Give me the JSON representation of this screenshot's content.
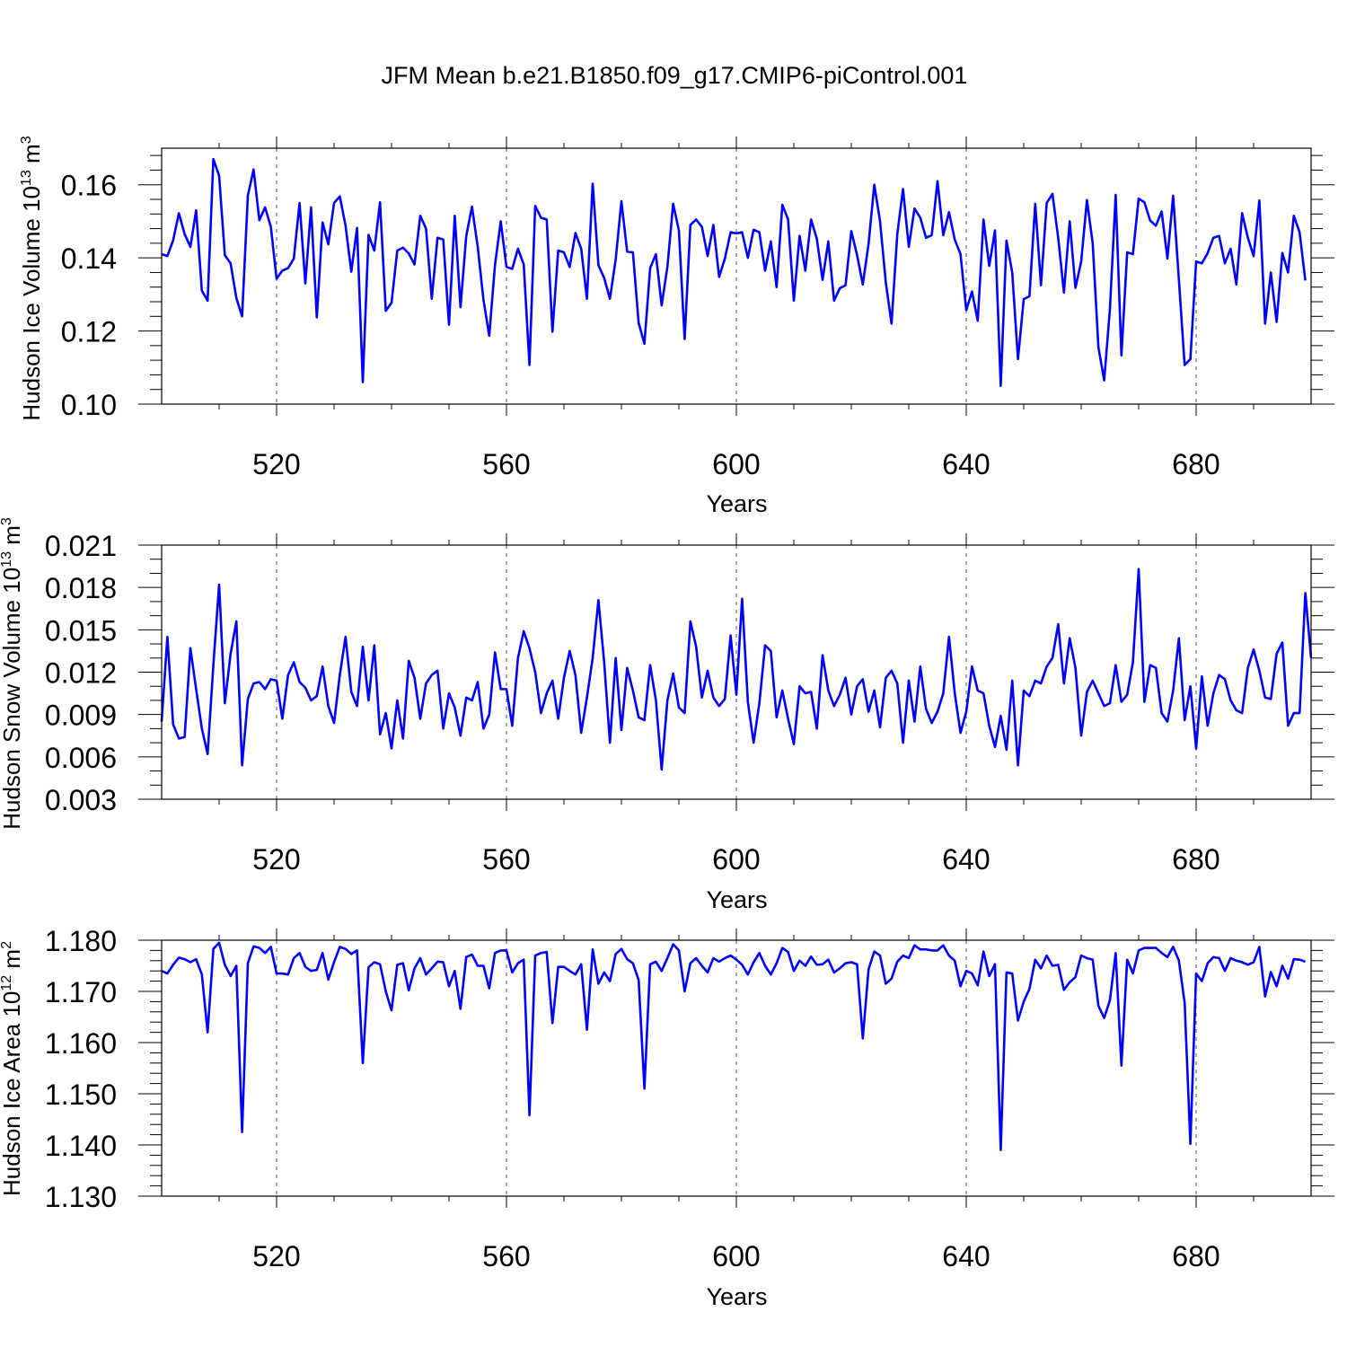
{
  "title": "JFM Mean b.e21.B1850.f09_g17.CMIP6-piControl.001",
  "colors": {
    "series": "#0000ff",
    "axes": "#000000",
    "grid": "#555555"
  },
  "chart_data": [
    {
      "type": "line",
      "ylabel_main": "Hudson Ice Volume 10",
      "ylabel_exp": "13",
      "ylabel_unit": "m",
      "ylabel_unit_exp": "3",
      "xlabel": "Years",
      "xlim": [
        500,
        700
      ],
      "ylim": [
        0.1,
        0.17
      ],
      "xticks": [
        520,
        560,
        600,
        640,
        680
      ],
      "xtick_labels": [
        "520",
        "560",
        "600",
        "640",
        "680"
      ],
      "yticks": [
        0.1,
        0.12,
        0.14,
        0.16
      ],
      "ytick_labels": [
        "0.10",
        "0.12",
        "0.14",
        "0.16"
      ],
      "y_minor_step": 0.004,
      "grid": "vertical dashed at major x ticks",
      "x_start": 500,
      "values": [
        0.141,
        0.1405,
        0.1448,
        0.1522,
        0.1465,
        0.143,
        0.153,
        0.131,
        0.1283,
        0.167,
        0.1625,
        0.1407,
        0.1385,
        0.129,
        0.124,
        0.157,
        0.1642,
        0.1503,
        0.1538,
        0.1485,
        0.1343,
        0.1365,
        0.1372,
        0.1398,
        0.155,
        0.133,
        0.1538,
        0.1237,
        0.1497,
        0.1437,
        0.155,
        0.1568,
        0.1488,
        0.1362,
        0.1482,
        0.106,
        0.1463,
        0.142,
        0.1552,
        0.1255,
        0.1277,
        0.142,
        0.1428,
        0.1412,
        0.1382,
        0.1515,
        0.148,
        0.1288,
        0.1455,
        0.145,
        0.1217,
        0.1515,
        0.1265,
        0.146,
        0.154,
        0.143,
        0.1285,
        0.1187,
        0.138,
        0.15,
        0.1375,
        0.137,
        0.1425,
        0.1382,
        0.1107,
        0.1542,
        0.151,
        0.1505,
        0.1198,
        0.142,
        0.1415,
        0.1375,
        0.1468,
        0.1425,
        0.1288,
        0.1603,
        0.138,
        0.1345,
        0.1288,
        0.1395,
        0.1555,
        0.1417,
        0.1415,
        0.1222,
        0.1165,
        0.1372,
        0.141,
        0.127,
        0.1375,
        0.1548,
        0.1475,
        0.1178,
        0.149,
        0.1505,
        0.1485,
        0.1405,
        0.149,
        0.1348,
        0.1398,
        0.147,
        0.1467,
        0.147,
        0.14,
        0.1477,
        0.147,
        0.1365,
        0.1445,
        0.132,
        0.1545,
        0.1505,
        0.1283,
        0.146,
        0.1365,
        0.1505,
        0.1452,
        0.134,
        0.1445,
        0.1283,
        0.1317,
        0.1325,
        0.1473,
        0.1408,
        0.1327,
        0.1438,
        0.16,
        0.15,
        0.1333,
        0.122,
        0.1465,
        0.1588,
        0.143,
        0.1535,
        0.151,
        0.1455,
        0.1462,
        0.161,
        0.1462,
        0.1525,
        0.145,
        0.141,
        0.1257,
        0.1308,
        0.1228,
        0.1505,
        0.1378,
        0.1475,
        0.105,
        0.1447,
        0.136,
        0.1123,
        0.1287,
        0.1295,
        0.1548,
        0.1325,
        0.155,
        0.1575,
        0.1455,
        0.1305,
        0.15,
        0.1318,
        0.139,
        0.1558,
        0.144,
        0.1155,
        0.1065,
        0.126,
        0.1572,
        0.1133,
        0.1415,
        0.141,
        0.1562,
        0.1552,
        0.1502,
        0.1488,
        0.1527,
        0.1398,
        0.157,
        0.134,
        0.1107,
        0.1123,
        0.139,
        0.1385,
        0.1413,
        0.1455,
        0.146,
        0.1385,
        0.1425,
        0.1327,
        0.1522,
        0.1455,
        0.1405,
        0.1557,
        0.122,
        0.136,
        0.1225,
        0.1413,
        0.136,
        0.1515,
        0.147,
        0.1338
      ]
    },
    {
      "type": "line",
      "ylabel_main": "Hudson Snow Volume 10",
      "ylabel_exp": "13",
      "ylabel_unit": "m",
      "ylabel_unit_exp": "3",
      "xlabel": "Years",
      "xlim": [
        500,
        700
      ],
      "ylim": [
        0.003,
        0.021
      ],
      "xticks": [
        520,
        560,
        600,
        640,
        680
      ],
      "xtick_labels": [
        "520",
        "560",
        "600",
        "640",
        "680"
      ],
      "yticks": [
        0.003,
        0.006,
        0.009,
        0.012,
        0.015,
        0.018,
        0.021
      ],
      "ytick_labels": [
        "0.003",
        "0.006",
        "0.009",
        "0.012",
        "0.015",
        "0.018",
        "0.021"
      ],
      "y_minor_step": 0.001,
      "grid": "vertical dashed at major x ticks",
      "x_start": 500,
      "values": [
        0.0085,
        0.0145,
        0.0083,
        0.0073,
        0.0074,
        0.0137,
        0.0108,
        0.008,
        0.0062,
        0.0125,
        0.0182,
        0.0098,
        0.0133,
        0.0156,
        0.0054,
        0.0101,
        0.0112,
        0.0113,
        0.0108,
        0.0115,
        0.0114,
        0.0087,
        0.0118,
        0.0127,
        0.0113,
        0.0109,
        0.01,
        0.0103,
        0.0124,
        0.0096,
        0.0084,
        0.0118,
        0.0145,
        0.0106,
        0.0096,
        0.0138,
        0.01,
        0.0139,
        0.0076,
        0.0091,
        0.0066,
        0.01,
        0.0073,
        0.0128,
        0.0116,
        0.0087,
        0.0112,
        0.0118,
        0.0121,
        0.008,
        0.0105,
        0.0095,
        0.0075,
        0.0102,
        0.01,
        0.0113,
        0.008,
        0.009,
        0.0134,
        0.0108,
        0.0108,
        0.0082,
        0.013,
        0.0149,
        0.0137,
        0.012,
        0.0091,
        0.0105,
        0.0114,
        0.0087,
        0.0116,
        0.0135,
        0.0118,
        0.0077,
        0.0102,
        0.013,
        0.0171,
        0.0127,
        0.007,
        0.013,
        0.0079,
        0.0123,
        0.0107,
        0.0088,
        0.0086,
        0.0125,
        0.01,
        0.0051,
        0.01,
        0.0119,
        0.0095,
        0.0091,
        0.0156,
        0.0138,
        0.0102,
        0.0121,
        0.0102,
        0.0096,
        0.0101,
        0.0146,
        0.0104,
        0.0172,
        0.0099,
        0.007,
        0.0098,
        0.0139,
        0.0135,
        0.0088,
        0.0107,
        0.0087,
        0.0069,
        0.011,
        0.0105,
        0.0106,
        0.008,
        0.0132,
        0.0107,
        0.0096,
        0.0104,
        0.0116,
        0.009,
        0.011,
        0.0115,
        0.0092,
        0.0107,
        0.0081,
        0.0116,
        0.0121,
        0.0112,
        0.007,
        0.0114,
        0.0085,
        0.0124,
        0.0094,
        0.0084,
        0.0092,
        0.0105,
        0.0145,
        0.0105,
        0.0077,
        0.0092,
        0.0124,
        0.0107,
        0.0105,
        0.0082,
        0.0067,
        0.0089,
        0.0065,
        0.0114,
        0.0054,
        0.0107,
        0.0103,
        0.0114,
        0.0112,
        0.0124,
        0.013,
        0.0154,
        0.0112,
        0.0144,
        0.0123,
        0.0075,
        0.0106,
        0.0114,
        0.0105,
        0.0096,
        0.0098,
        0.0125,
        0.0099,
        0.0104,
        0.0127,
        0.0193,
        0.0099,
        0.0125,
        0.0123,
        0.0091,
        0.0085,
        0.0107,
        0.0144,
        0.0086,
        0.011,
        0.0066,
        0.0117,
        0.0082,
        0.0105,
        0.0118,
        0.0115,
        0.01,
        0.0093,
        0.0091,
        0.0123,
        0.0136,
        0.0121,
        0.0102,
        0.0101,
        0.0133,
        0.0141,
        0.0082,
        0.0091,
        0.0091,
        0.0176,
        0.013
      ]
    },
    {
      "type": "line",
      "ylabel_main": "Hudson Ice Area 10",
      "ylabel_exp": "12",
      "ylabel_unit": "m",
      "ylabel_unit_exp": "2",
      "xlabel": "Years",
      "xlim": [
        500,
        700
      ],
      "ylim": [
        1.13,
        1.18
      ],
      "xticks": [
        520,
        560,
        600,
        640,
        680
      ],
      "xtick_labels": [
        "520",
        "560",
        "600",
        "640",
        "680"
      ],
      "yticks": [
        1.13,
        1.14,
        1.15,
        1.16,
        1.17,
        1.18
      ],
      "ytick_labels": [
        "1.130",
        "1.140",
        "1.150",
        "1.160",
        "1.170",
        "1.180"
      ],
      "y_minor_step": 0.002,
      "grid": "vertical dashed at major x ticks",
      "x_start": 500,
      "values": [
        1.174,
        1.1735,
        1.1752,
        1.1766,
        1.1763,
        1.1757,
        1.1763,
        1.1733,
        1.162,
        1.1783,
        1.1795,
        1.1752,
        1.173,
        1.175,
        1.1425,
        1.1755,
        1.1788,
        1.1785,
        1.1775,
        1.1787,
        1.1735,
        1.1735,
        1.1733,
        1.1765,
        1.1775,
        1.1748,
        1.174,
        1.1742,
        1.1775,
        1.1723,
        1.1757,
        1.1787,
        1.1783,
        1.1773,
        1.178,
        1.156,
        1.1747,
        1.1757,
        1.1753,
        1.17,
        1.1663,
        1.1752,
        1.1755,
        1.1702,
        1.1745,
        1.1765,
        1.1733,
        1.1745,
        1.1758,
        1.1757,
        1.171,
        1.174,
        1.1666,
        1.1767,
        1.1772,
        1.175,
        1.175,
        1.1706,
        1.1775,
        1.178,
        1.178,
        1.1737,
        1.1755,
        1.1762,
        1.1458,
        1.177,
        1.1775,
        1.1777,
        1.1638,
        1.1748,
        1.1748,
        1.174,
        1.1733,
        1.1753,
        1.1625,
        1.1782,
        1.1715,
        1.1737,
        1.172,
        1.1773,
        1.1783,
        1.1763,
        1.1755,
        1.1722,
        1.151,
        1.1753,
        1.1758,
        1.174,
        1.1765,
        1.1792,
        1.178,
        1.17,
        1.1755,
        1.1765,
        1.175,
        1.1737,
        1.1765,
        1.1758,
        1.1765,
        1.177,
        1.1762,
        1.1752,
        1.1733,
        1.1757,
        1.1775,
        1.175,
        1.1733,
        1.1755,
        1.1785,
        1.1777,
        1.174,
        1.176,
        1.175,
        1.1768,
        1.1752,
        1.1753,
        1.1762,
        1.1737,
        1.1745,
        1.1755,
        1.1757,
        1.1753,
        1.1608,
        1.1743,
        1.1778,
        1.177,
        1.1715,
        1.1725,
        1.1758,
        1.177,
        1.1765,
        1.179,
        1.1782,
        1.1782,
        1.178,
        1.178,
        1.179,
        1.177,
        1.176,
        1.171,
        1.174,
        1.1735,
        1.1712,
        1.1778,
        1.173,
        1.1753,
        1.139,
        1.1737,
        1.1735,
        1.1643,
        1.168,
        1.1705,
        1.1762,
        1.1745,
        1.177,
        1.175,
        1.1752,
        1.1703,
        1.1718,
        1.1728,
        1.177,
        1.1765,
        1.1762,
        1.1672,
        1.1648,
        1.1683,
        1.1775,
        1.1555,
        1.1762,
        1.1735,
        1.178,
        1.1785,
        1.1785,
        1.1785,
        1.1775,
        1.1767,
        1.1787,
        1.176,
        1.1678,
        1.1402,
        1.1735,
        1.172,
        1.1755,
        1.1767,
        1.1765,
        1.174,
        1.1765,
        1.176,
        1.1757,
        1.1752,
        1.1757,
        1.1787,
        1.169,
        1.1738,
        1.171,
        1.175,
        1.1725,
        1.1763,
        1.1762,
        1.1758
      ]
    }
  ]
}
